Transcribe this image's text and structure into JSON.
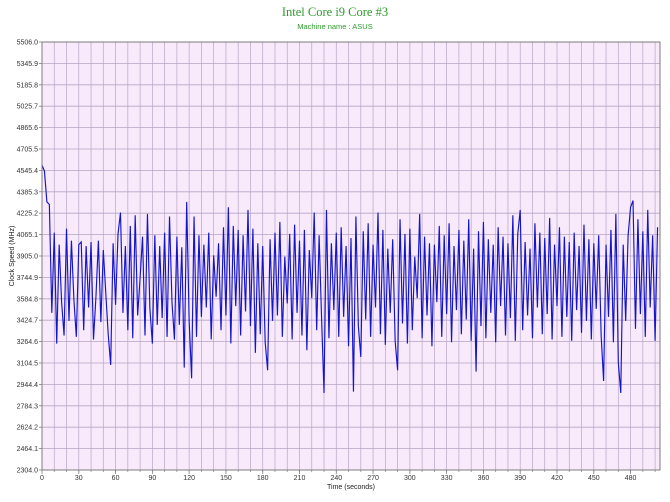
{
  "chart_data": {
    "type": "line",
    "title": "Intel Core i9 Core #3",
    "subtitle": "Machine name : ASUS",
    "xlabel": "Time (seconds)",
    "ylabel": "Clock Speed (MHz)",
    "xlim": [
      0,
      504
    ],
    "ylim": [
      2304.0,
      5506.0
    ],
    "xticks": [
      0,
      30,
      60,
      90,
      120,
      150,
      180,
      210,
      240,
      270,
      300,
      330,
      360,
      390,
      420,
      450,
      480
    ],
    "yticks": [
      "5506.0",
      "5345.9",
      "5185.8",
      "5025.7",
      "4865.6",
      "4705.5",
      "4545.4",
      "4385.3",
      "4225.2",
      "4065.1",
      "3905.0",
      "3744.9",
      "3584.8",
      "3424.7",
      "3264.6",
      "3104.5",
      "2944.4",
      "2784.3",
      "2624.2",
      "2464.1",
      "2304.0"
    ],
    "grid": true,
    "colors": {
      "line": "#1515c8",
      "title": "#2e9a2e",
      "plot_background": "#f8e9fb",
      "grid": "#b6a6c6"
    },
    "x": [
      0,
      2,
      4,
      6,
      8,
      10,
      12,
      14,
      16,
      18,
      20,
      22,
      24,
      26,
      28,
      30,
      32,
      34,
      36,
      38,
      40,
      42,
      44,
      46,
      48,
      50,
      52,
      54,
      56,
      58,
      60,
      62,
      64,
      66,
      68,
      70,
      72,
      74,
      76,
      78,
      80,
      82,
      84,
      86,
      88,
      90,
      92,
      94,
      96,
      98,
      100,
      102,
      104,
      106,
      108,
      110,
      112,
      114,
      116,
      118,
      120,
      122,
      124,
      126,
      128,
      130,
      132,
      134,
      136,
      138,
      140,
      142,
      144,
      146,
      148,
      150,
      152,
      154,
      156,
      158,
      160,
      162,
      164,
      166,
      168,
      170,
      172,
      174,
      176,
      178,
      180,
      182,
      184,
      186,
      188,
      190,
      192,
      194,
      196,
      198,
      200,
      202,
      204,
      206,
      208,
      210,
      212,
      214,
      216,
      218,
      220,
      222,
      224,
      226,
      228,
      230,
      232,
      234,
      236,
      238,
      240,
      242,
      244,
      246,
      248,
      250,
      252,
      254,
      256,
      258,
      260,
      262,
      264,
      266,
      268,
      270,
      272,
      274,
      276,
      278,
      280,
      282,
      284,
      286,
      288,
      290,
      292,
      294,
      296,
      298,
      300,
      302,
      304,
      306,
      308,
      310,
      312,
      314,
      316,
      318,
      320,
      322,
      324,
      326,
      328,
      330,
      332,
      334,
      336,
      338,
      340,
      342,
      344,
      346,
      348,
      350,
      352,
      354,
      356,
      358,
      360,
      362,
      364,
      366,
      368,
      370,
      372,
      374,
      376,
      378,
      380,
      382,
      384,
      386,
      388,
      390,
      392,
      394,
      396,
      398,
      400,
      402,
      404,
      406,
      408,
      410,
      412,
      414,
      416,
      418,
      420,
      422,
      424,
      426,
      428,
      430,
      432,
      434,
      436,
      438,
      440,
      442,
      444,
      446,
      448,
      450,
      452,
      454,
      456,
      458,
      460,
      462,
      464,
      466,
      468,
      470,
      472,
      474,
      476,
      478,
      480,
      482,
      484,
      486,
      488,
      490,
      492,
      494,
      496,
      498,
      500,
      502
    ],
    "series": [
      {
        "values": [
          4585,
          4540,
          4310,
          4290,
          3480,
          4080,
          3250,
          3990,
          3560,
          3310,
          4110,
          3420,
          4020,
          3580,
          3300,
          3990,
          4010,
          3350,
          3980,
          3520,
          4010,
          3280,
          3600,
          4020,
          3410,
          3950,
          3630,
          3320,
          3090,
          4000,
          3540,
          4070,
          4230,
          3480,
          3980,
          3350,
          4130,
          3290,
          4210,
          3460,
          3740,
          4050,
          3310,
          4220,
          3510,
          3250,
          4060,
          3390,
          3980,
          3440,
          4080,
          3300,
          4200,
          3560,
          3280,
          4050,
          3390,
          3970,
          3070,
          4310,
          3420,
          2990,
          4200,
          3300,
          4060,
          3450,
          3990,
          3520,
          4080,
          3280,
          3910,
          3600,
          4000,
          3350,
          4120,
          3460,
          4270,
          3250,
          4130,
          3530,
          4100,
          3310,
          4060,
          3490,
          4250,
          3380,
          4110,
          3180,
          4000,
          3320,
          3980,
          3260,
          3050,
          4030,
          3420,
          4080,
          3460,
          4160,
          3300,
          3900,
          3550,
          4070,
          3280,
          4140,
          3480,
          4020,
          3310,
          4100,
          3200,
          3950,
          3590,
          4230,
          3350,
          4060,
          3440,
          2880,
          4250,
          3290,
          4000,
          3500,
          4080,
          3300,
          4120,
          3450,
          3980,
          3230,
          4040,
          2890,
          4200,
          3380,
          3150,
          4090,
          3430,
          4150,
          3300,
          3990,
          3520,
          4230,
          3320,
          4100,
          3240,
          3960,
          3480,
          4030,
          3270,
          3050,
          4180,
          3400,
          4070,
          3250,
          4110,
          3350,
          3900,
          3590,
          4220,
          3290,
          4050,
          3460,
          4000,
          3230,
          3990,
          3560,
          4130,
          3300,
          4060,
          3470,
          4150,
          3260,
          3980,
          3500,
          4100,
          3320,
          4020,
          3430,
          4180,
          3270,
          3960,
          3040,
          4090,
          3380,
          4160,
          3290,
          4030,
          3480,
          3990,
          3260,
          4120,
          3530,
          4050,
          3310,
          4000,
          3440,
          4210,
          3270,
          4070,
          4250,
          3350,
          4010,
          3460,
          3960,
          3290,
          4150,
          3520,
          4080,
          3320,
          4040,
          3470,
          4190,
          3280,
          3990,
          3530,
          4120,
          3300,
          4050,
          3450,
          4010,
          3270,
          4080,
          3500,
          3980,
          3330,
          4140,
          3420,
          4030,
          3280,
          4000,
          3510,
          4060,
          3310,
          2970,
          3990,
          3450,
          4100,
          3260,
          4220,
          3110,
          2880,
          3990,
          3420,
          4060,
          4270,
          4320,
          3360,
          4180,
          3470,
          4090,
          3300,
          4250,
          3520,
          4060,
          3270,
          4120
        ]
      }
    ]
  }
}
